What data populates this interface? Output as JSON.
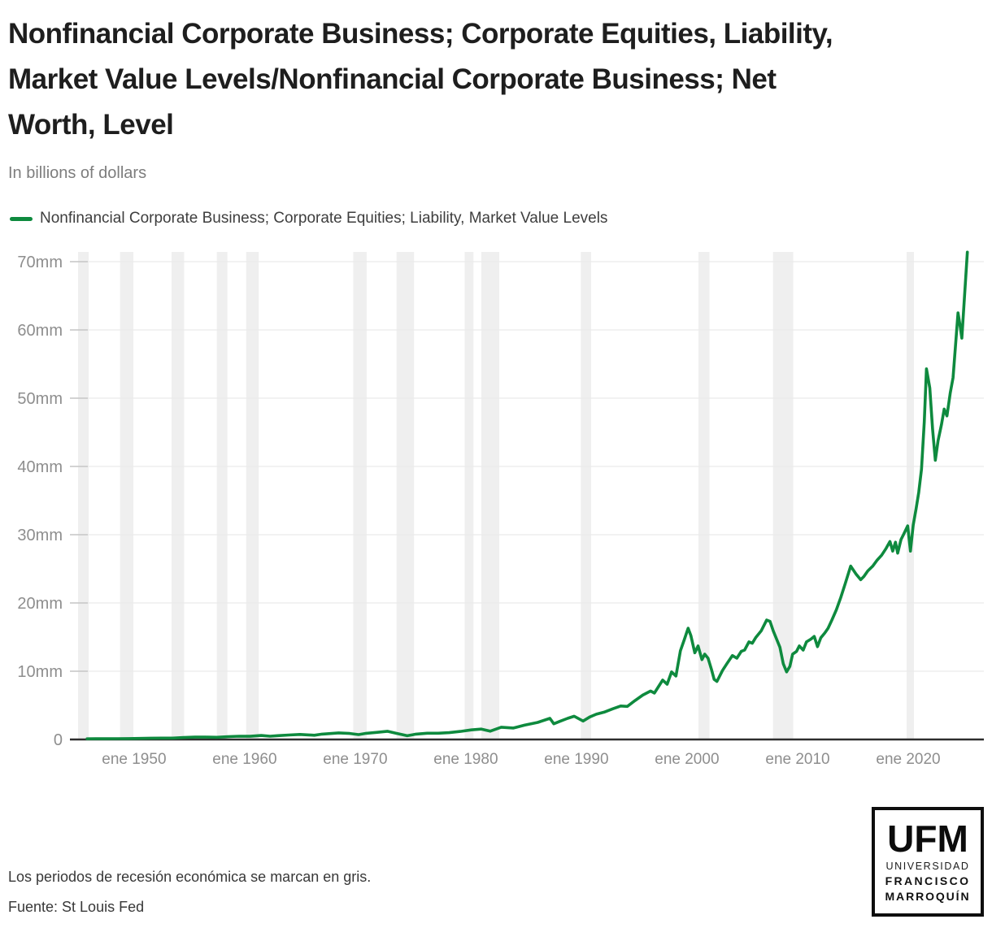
{
  "header": {
    "title_lines": [
      "Nonfinancial Corporate Business; Corporate Equities, Liability,",
      "Market Value Levels/Nonfinancial Corporate Business; Net",
      "Worth, Level"
    ],
    "subtitle": "In billions of dollars"
  },
  "legend": {
    "label": "Nonfinancial Corporate Business; Corporate Equities; Liability, Market Value Levels",
    "color": "#0e8a3e"
  },
  "notes": {
    "recession_note": "Los periodos de recesión económica se marcan en gris.",
    "source": "Fuente: St Louis Fed"
  },
  "logo": {
    "acronym": "UFM",
    "line1": "UNIVERSIDAD",
    "line2": "FRANCISCO",
    "line3": "MARROQUÍN"
  },
  "colors": {
    "line_green": "#0e8a3e",
    "recession_band": "#efefef",
    "gridline": "#eaeaea",
    "tick": "#c6c6c6",
    "axis_line": "#2e2e2e",
    "axis_label": "#8e8e8e",
    "title_text": "#1e1e1e",
    "subtitle_text": "#7d7d7d",
    "background": "#ffffff"
  },
  "chart_data": {
    "type": "line",
    "title": "Nonfinancial Corporate Business; Corporate Equities, Liability, Market Value Levels/Nonfinancial Corporate Business; Net Worth, Level",
    "subtitle": "In billions of dollars",
    "xlabel": "",
    "ylabel": "",
    "grid": "horizontal",
    "legend_position": "top-left",
    "xlim": [
      1944.2,
      2026.84
    ],
    "ylim": [
      0,
      71.43
    ],
    "x_ticks": [
      {
        "label": "ene 1950",
        "year": 1950
      },
      {
        "label": "ene 1960",
        "year": 1960
      },
      {
        "label": "ene 1970",
        "year": 1970
      },
      {
        "label": "ene 1980",
        "year": 1980
      },
      {
        "label": "ene 1990",
        "year": 1990
      },
      {
        "label": "ene 2000",
        "year": 2000
      },
      {
        "label": "ene 2010",
        "year": 2010
      },
      {
        "label": "ene 2020",
        "year": 2020
      }
    ],
    "y_ticks": [
      {
        "label": "0",
        "value": 0
      },
      {
        "label": "10mm",
        "value": 10
      },
      {
        "label": "20mm",
        "value": 20
      },
      {
        "label": "30mm",
        "value": 30
      },
      {
        "label": "40mm",
        "value": 40
      },
      {
        "label": "50mm",
        "value": 50
      },
      {
        "label": "60mm",
        "value": 60
      },
      {
        "label": "70mm",
        "value": 70
      }
    ],
    "recessions": [
      [
        1945.08,
        1945.75
      ],
      [
        1948.88,
        1949.79
      ],
      [
        1953.54,
        1954.38
      ],
      [
        1957.63,
        1958.29
      ],
      [
        1960.29,
        1961.13
      ],
      [
        1969.96,
        1970.88
      ],
      [
        1973.88,
        1975.17
      ],
      [
        1980.04,
        1980.54
      ],
      [
        1981.54,
        1982.88
      ],
      [
        1990.54,
        1991.17
      ],
      [
        2001.17,
        2001.88
      ],
      [
        2007.92,
        2009.46
      ],
      [
        2020.08,
        2020.29
      ]
    ],
    "series": [
      {
        "name": "Nonfinancial Corporate Business; Corporate Equities; Liability, Market Value Levels",
        "color": "#0e8a3e",
        "points": [
          [
            1945.75,
            0.1
          ],
          [
            1946.5,
            0.12
          ],
          [
            1947.5,
            0.11
          ],
          [
            1948.5,
            0.12
          ],
          [
            1949.5,
            0.13
          ],
          [
            1950.5,
            0.16
          ],
          [
            1951.5,
            0.19
          ],
          [
            1952.5,
            0.2
          ],
          [
            1953.5,
            0.2
          ],
          [
            1954.5,
            0.28
          ],
          [
            1955.5,
            0.34
          ],
          [
            1956.5,
            0.35
          ],
          [
            1957.5,
            0.32
          ],
          [
            1958.5,
            0.42
          ],
          [
            1959.5,
            0.48
          ],
          [
            1960.5,
            0.47
          ],
          [
            1961.5,
            0.58
          ],
          [
            1962.3,
            0.48
          ],
          [
            1963.0,
            0.56
          ],
          [
            1964.0,
            0.66
          ],
          [
            1965.0,
            0.74
          ],
          [
            1966.3,
            0.62
          ],
          [
            1967.0,
            0.78
          ],
          [
            1968.5,
            0.97
          ],
          [
            1969.5,
            0.88
          ],
          [
            1970.3,
            0.72
          ],
          [
            1971.0,
            0.9
          ],
          [
            1972.0,
            1.05
          ],
          [
            1972.9,
            1.2
          ],
          [
            1973.7,
            0.9
          ],
          [
            1974.7,
            0.55
          ],
          [
            1975.5,
            0.78
          ],
          [
            1976.5,
            0.92
          ],
          [
            1977.5,
            0.92
          ],
          [
            1978.5,
            1.0
          ],
          [
            1979.5,
            1.18
          ],
          [
            1980.5,
            1.4
          ],
          [
            1981.4,
            1.52
          ],
          [
            1982.2,
            1.22
          ],
          [
            1983.2,
            1.8
          ],
          [
            1984.3,
            1.68
          ],
          [
            1985.3,
            2.1
          ],
          [
            1986.5,
            2.5
          ],
          [
            1987.6,
            3.1
          ],
          [
            1987.95,
            2.3
          ],
          [
            1988.5,
            2.65
          ],
          [
            1989.2,
            3.1
          ],
          [
            1989.8,
            3.4
          ],
          [
            1990.6,
            2.7
          ],
          [
            1991.2,
            3.3
          ],
          [
            1991.8,
            3.7
          ],
          [
            1992.5,
            4.0
          ],
          [
            1993.3,
            4.5
          ],
          [
            1994.0,
            4.9
          ],
          [
            1994.6,
            4.85
          ],
          [
            1995.3,
            5.7
          ],
          [
            1996.0,
            6.5
          ],
          [
            1996.7,
            7.1
          ],
          [
            1997.05,
            6.8
          ],
          [
            1997.8,
            8.7
          ],
          [
            1998.2,
            8.1
          ],
          [
            1998.6,
            9.9
          ],
          [
            1999.0,
            9.3
          ],
          [
            1999.4,
            13.0
          ],
          [
            1999.75,
            14.6
          ],
          [
            2000.1,
            16.3
          ],
          [
            2000.35,
            15.2
          ],
          [
            2000.7,
            12.7
          ],
          [
            2001.0,
            13.7
          ],
          [
            2001.35,
            11.7
          ],
          [
            2001.6,
            12.5
          ],
          [
            2001.9,
            11.9
          ],
          [
            2002.2,
            10.3
          ],
          [
            2002.45,
            8.8
          ],
          [
            2002.7,
            8.5
          ],
          [
            2002.95,
            9.3
          ],
          [
            2003.2,
            10.1
          ],
          [
            2003.6,
            11.1
          ],
          [
            2004.1,
            12.3
          ],
          [
            2004.5,
            11.9
          ],
          [
            2004.9,
            12.9
          ],
          [
            2005.2,
            13.1
          ],
          [
            2005.6,
            14.3
          ],
          [
            2005.9,
            14.1
          ],
          [
            2006.2,
            14.9
          ],
          [
            2006.7,
            15.9
          ],
          [
            2007.2,
            17.5
          ],
          [
            2007.5,
            17.3
          ],
          [
            2007.8,
            15.9
          ],
          [
            2008.1,
            14.7
          ],
          [
            2008.4,
            13.5
          ],
          [
            2008.7,
            11.1
          ],
          [
            2009.0,
            9.9
          ],
          [
            2009.3,
            10.7
          ],
          [
            2009.55,
            12.5
          ],
          [
            2009.9,
            12.9
          ],
          [
            2010.15,
            13.7
          ],
          [
            2010.5,
            13.1
          ],
          [
            2010.8,
            14.3
          ],
          [
            2011.2,
            14.7
          ],
          [
            2011.5,
            15.1
          ],
          [
            2011.8,
            13.6
          ],
          [
            2012.1,
            14.9
          ],
          [
            2012.45,
            15.6
          ],
          [
            2012.75,
            16.3
          ],
          [
            2013.1,
            17.5
          ],
          [
            2013.5,
            19.0
          ],
          [
            2013.9,
            20.8
          ],
          [
            2014.3,
            22.8
          ],
          [
            2014.8,
            25.4
          ],
          [
            2015.3,
            24.2
          ],
          [
            2015.7,
            23.4
          ],
          [
            2016.0,
            23.9
          ],
          [
            2016.35,
            24.7
          ],
          [
            2016.8,
            25.4
          ],
          [
            2017.2,
            26.3
          ],
          [
            2017.6,
            27.0
          ],
          [
            2018.0,
            28.0
          ],
          [
            2018.35,
            29.0
          ],
          [
            2018.6,
            27.6
          ],
          [
            2018.85,
            28.9
          ],
          [
            2019.05,
            27.3
          ],
          [
            2019.35,
            29.3
          ],
          [
            2019.6,
            30.1
          ],
          [
            2019.95,
            31.3
          ],
          [
            2020.2,
            27.6
          ],
          [
            2020.45,
            31.4
          ],
          [
            2020.7,
            33.7
          ],
          [
            2020.95,
            36.2
          ],
          [
            2021.2,
            39.6
          ],
          [
            2021.45,
            46.5
          ],
          [
            2021.65,
            54.3
          ],
          [
            2021.95,
            51.5
          ],
          [
            2022.2,
            45.5
          ],
          [
            2022.45,
            40.9
          ],
          [
            2022.7,
            43.8
          ],
          [
            2023.0,
            46.1
          ],
          [
            2023.25,
            48.4
          ],
          [
            2023.5,
            47.4
          ],
          [
            2023.8,
            50.8
          ],
          [
            2024.05,
            53.0
          ],
          [
            2024.5,
            62.5
          ],
          [
            2024.7,
            60.5
          ],
          [
            2024.85,
            58.8
          ],
          [
            2025.05,
            64.0
          ],
          [
            2025.35,
            71.4
          ]
        ]
      }
    ]
  }
}
